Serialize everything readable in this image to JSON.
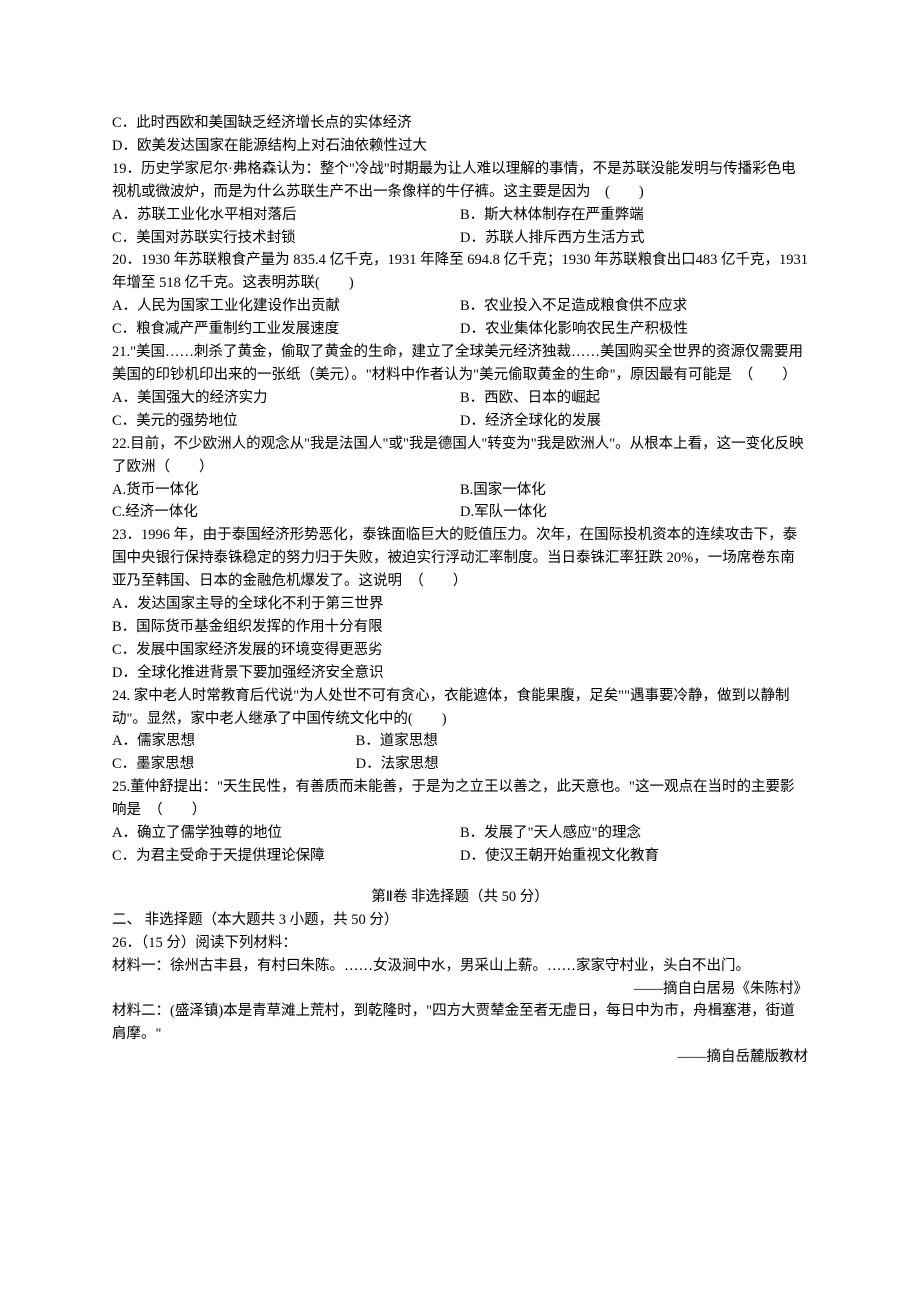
{
  "q18": {
    "optC": "C．此时西欧和美国缺乏经济增长点的实体经济",
    "optD": "D．欧美发达国家在能源结构上对石油依赖性过大"
  },
  "q19": {
    "stem": "19．历史学家尼尔·弗格森认为：整个\"冷战\"时期最为让人难以理解的事情，不是苏联没能发明与传播彩色电视机或微波炉，而是为什么苏联生产不出一条像样的牛仔裤。这主要是因为　(　　)",
    "optA": "A．苏联工业化水平相对落后",
    "optB": "B．斯大林体制存在严重弊端",
    "optC": "C．美国对苏联实行技术封锁",
    "optD": "D．苏联人排斥西方生活方式"
  },
  "q20": {
    "stem": "20．1930 年苏联粮食产量为 835.4 亿千克，1931 年降至 694.8 亿千克；1930 年苏联粮食出口483 亿千克，1931 年增至 518 亿千克。这表明苏联(　　)",
    "optA": "A．人民为国家工业化建设作出贡献",
    "optB": "B．农业投入不足造成粮食供不应求",
    "optC": "C．粮食减产严重制约工业发展速度",
    "optD": "D．农业集体化影响农民生产积极性"
  },
  "q21": {
    "stem": "21.\"美国……刺杀了黄金，偷取了黄金的生命，建立了全球美元经济独裁……美国购买全世界的资源仅需要用美国的印钞机印出来的一张纸（美元）。\"材料中作者认为\"美元偷取黄金的生命\"，原因最有可能是　（　　）",
    "optA": "A．美国强大的经济实力",
    "optB": "B．西欧、日本的崛起",
    "optC": "C．美元的强势地位",
    "optD": "D．经济全球化的发展"
  },
  "q22": {
    "stem": "22.目前，不少欧洲人的观念从\"我是法国人\"或\"我是德国人\"转变为\"我是欧洲人\"。从根本上看，这一变化反映了欧洲（　　）",
    "optA": "A.货币一体化",
    "optB": "B.国家一体化",
    "optC": "C.经济一体化",
    "optD": "D.军队一体化"
  },
  "q23": {
    "stem": "23．1996 年，由于泰国经济形势恶化，泰铢面临巨大的贬值压力。次年，在国际投机资本的连续攻击下，泰国中央银行保持泰铢稳定的努力归于失败，被迫实行浮动汇率制度。当日泰铢汇率狂跌 20%，一场席卷东南亚乃至韩国、日本的金融危机爆发了。这说明　（　　）",
    "optA": "A．发达国家主导的全球化不利于第三世界",
    "optB": "B．国际货币基金组织发挥的作用十分有限",
    "optC": "C．发展中国家经济发展的环境变得更恶劣",
    "optD": "D．全球化推进背景下要加强经济安全意识"
  },
  "q24": {
    "stem": "24. 家中老人时常教育后代说\"为人处世不可有贪心，衣能遮体，食能果腹，足矣\"\"遇事要冷静，做到以静制动\"。显然，家中老人继承了中国传统文化中的(　　)",
    "optA": "A．儒家思想",
    "optB": "B．道家思想",
    "optC": "C．墨家思想",
    "optD": "D．法家思想"
  },
  "q25": {
    "stem": "25.董仲舒提出：\"天生民性，有善质而未能善，于是为之立王以善之，此天意也。\"这一观点在当时的主要影响是　（　　）",
    "optA": "A．确立了儒学独尊的地位",
    "optB": "B．发展了\"天人感应\"的理念",
    "optC": "C．为君主受命于天提供理论保障",
    "optD": "D．使汉王朝开始重视文化教育"
  },
  "section2": {
    "title": "第Ⅱ卷 非选择题（共 50 分）",
    "heading": "二、 非选择题（本大题共 3 小题，共 50 分）"
  },
  "q26": {
    "lead": "26．（15 分）阅读下列材料：",
    "m1": "材料一：徐州古丰县，有村曰朱陈。……女汲涧中水，男采山上薪。……家家守村业，头白不出门。",
    "m1src": "——摘自白居易《朱陈村》",
    "m2": "材料二：(盛泽镇)本是青草滩上荒村，到乾隆时，\"四方大贾辇金至者无虚日，每日中为市，舟楫塞港，街道肩摩。\"",
    "m2src": "——摘自岳麓版教材"
  }
}
